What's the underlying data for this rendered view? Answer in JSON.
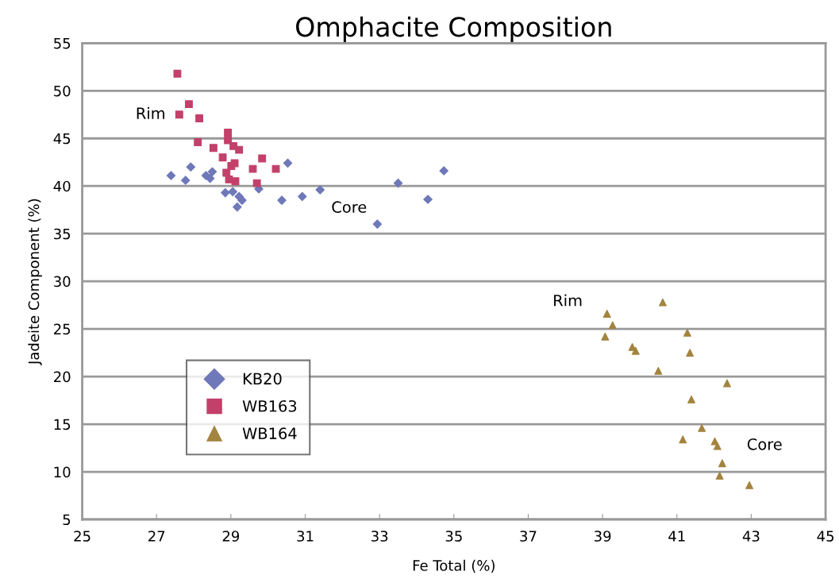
{
  "chart_data": {
    "type": "scatter",
    "title": "Omphacite Composition",
    "xlabel": "Fe Total (%)",
    "ylabel": "Jadeite Component (%)",
    "xlim": [
      25,
      45
    ],
    "xticks": [
      25,
      27,
      29,
      31,
      33,
      35,
      37,
      39,
      41,
      43,
      45
    ],
    "ylim": [
      5,
      55
    ],
    "yticks": [
      5,
      10,
      15,
      20,
      25,
      30,
      35,
      40,
      45,
      50,
      55
    ],
    "grid": "y",
    "legend": "bottom left",
    "series": [
      {
        "name": "KB20",
        "color": "#6f78b8",
        "marker": "diamond",
        "x": [
          27.39,
          27.78,
          27.92,
          28.33,
          28.44,
          28.5,
          28.85,
          29.05,
          29.22,
          29.3,
          29.17,
          29.75,
          30.37,
          30.53,
          30.92,
          31.4,
          32.94,
          33.5,
          34.3,
          34.73
        ],
        "values": [
          41.1,
          40.6,
          42.0,
          41.1,
          40.8,
          41.5,
          39.3,
          39.4,
          38.9,
          38.5,
          37.8,
          39.7,
          38.5,
          42.4,
          38.9,
          39.6,
          36.0,
          40.3,
          38.6,
          41.6
        ]
      },
      {
        "name": "WB163",
        "color": "#c2406a",
        "marker": "square",
        "x": [
          27.56,
          27.87,
          27.61,
          28.15,
          28.92,
          28.92,
          28.11,
          29.07,
          29.22,
          28.53,
          28.78,
          29.84,
          29.1,
          29.01,
          29.59,
          30.21,
          28.88,
          28.95,
          29.12,
          29.7
        ],
        "values": [
          51.8,
          48.6,
          47.5,
          47.1,
          45.6,
          44.8,
          44.6,
          44.2,
          43.8,
          44.0,
          43.0,
          42.9,
          42.4,
          42.1,
          41.8,
          41.8,
          41.4,
          40.7,
          40.5,
          40.3
        ]
      },
      {
        "name": "WB164",
        "color": "#a3843f",
        "marker": "triangle",
        "x": [
          40.62,
          39.12,
          39.27,
          39.07,
          41.28,
          39.8,
          39.89,
          41.35,
          40.5,
          42.35,
          41.39,
          41.67,
          41.16,
          42.02,
          42.09,
          42.22,
          42.15,
          42.95
        ],
        "values": [
          27.8,
          26.6,
          25.4,
          24.2,
          24.6,
          23.1,
          22.7,
          22.5,
          20.6,
          19.3,
          17.6,
          14.6,
          13.4,
          13.2,
          12.7,
          10.9,
          9.6,
          8.6
        ]
      }
    ],
    "annotations": [
      "Rim",
      "Core",
      "Rim",
      "Core"
    ]
  }
}
